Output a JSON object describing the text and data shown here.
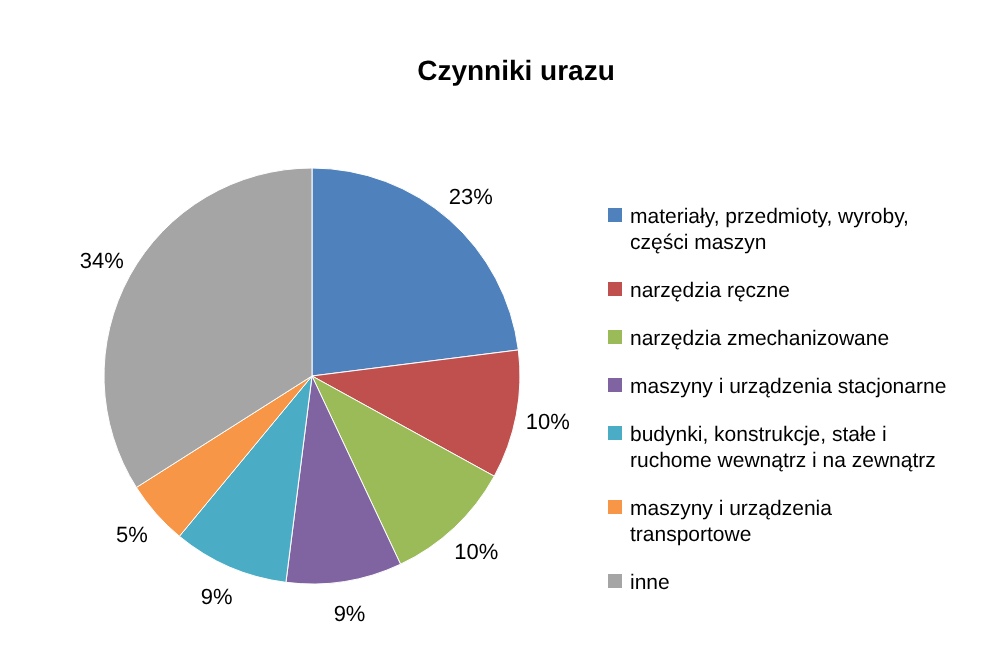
{
  "chart_data": {
    "type": "pie",
    "title": "Czynniki urazu",
    "categories": [
      "materiały, przedmioty, wyroby, części maszyn",
      "narzędzia ręczne",
      "narzędzia zmechanizowane",
      "maszyny i urządzenia stacjonarne",
      "budynki, konstrukcje, stałe i ruchome wewnątrz i na zewnątrz",
      "maszyny i urządzenia transportowe",
      "inne"
    ],
    "values": [
      23,
      10,
      10,
      9,
      9,
      5,
      34
    ],
    "colors": [
      "#4f81bd",
      "#c0504d",
      "#9bbb59",
      "#8064a2",
      "#4bacc6",
      "#f79646",
      "#a5a5a5"
    ],
    "value_labels": [
      "23%",
      "10%",
      "10%",
      "9%",
      "9%",
      "5%",
      "34%"
    ],
    "legend": "right"
  }
}
